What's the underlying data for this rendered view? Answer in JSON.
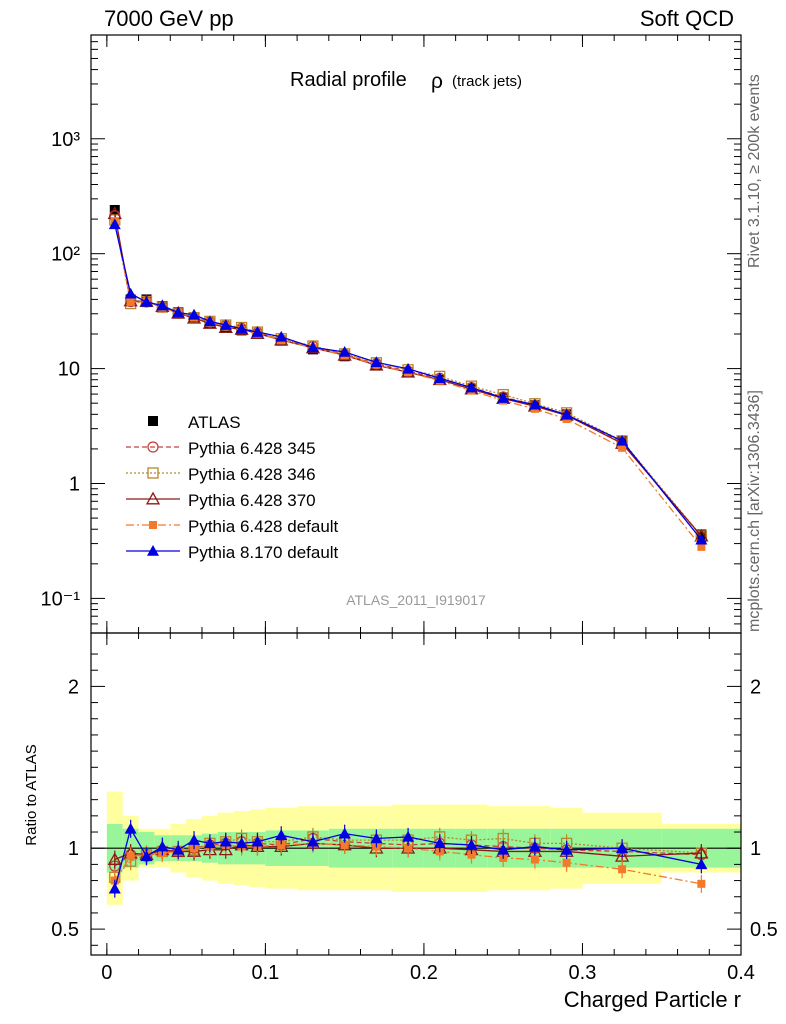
{
  "header": {
    "left": "7000 GeV pp",
    "right": "Soft QCD"
  },
  "side": {
    "rivet": "Rivet 3.1.10, ≥ 200k events",
    "mcplots": "mcplots.cern.ch [arXiv:1306.3436]"
  },
  "colors": {
    "atlas": "#000000",
    "p345": "#c04040",
    "p346": "#b8862e",
    "p370": "#8b1a1a",
    "p6def": "#f47a2b",
    "p8def": "#0000e0",
    "band_inner": "#99f599",
    "band_outer": "#ffff9f"
  },
  "chart_data": {
    "type": "line",
    "title": "Radial profile",
    "title_symbol": "ρ",
    "title_suffix": "(track jets)",
    "analysis_label": "ATLAS_2011_I919017",
    "xlabel": "Charged Particle r",
    "ylabel_ratio": "Ratio to ATLAS",
    "xlim": [
      -0.01,
      0.4
    ],
    "ylim": [
      0.05,
      8000
    ],
    "ylog": true,
    "ratio_ylim": [
      0.34,
      2.33
    ],
    "x_ticks": [
      "0",
      "0.1",
      "0.2",
      "0.3",
      "0.4"
    ],
    "x_tick_values": [
      0,
      0.1,
      0.2,
      0.3,
      0.4
    ],
    "y_ticks": [
      "10⁻¹",
      "1",
      "10",
      "10²",
      "10³"
    ],
    "y_tick_values": [
      0.1,
      1,
      10,
      100,
      1000
    ],
    "ratio_ticks": [
      "0.5",
      "1",
      "2"
    ],
    "ratio_tick_values": [
      0.5,
      1,
      2
    ],
    "bin_edges": [
      0,
      0.01,
      0.02,
      0.03,
      0.04,
      0.05,
      0.06,
      0.07,
      0.08,
      0.09,
      0.1,
      0.12,
      0.14,
      0.16,
      0.18,
      0.2,
      0.22,
      0.24,
      0.26,
      0.28,
      0.3,
      0.35,
      0.4
    ],
    "x": [
      0.005,
      0.015,
      0.025,
      0.035,
      0.045,
      0.055,
      0.065,
      0.075,
      0.085,
      0.095,
      0.11,
      0.13,
      0.15,
      0.17,
      0.19,
      0.21,
      0.23,
      0.25,
      0.27,
      0.29,
      0.325,
      0.375
    ],
    "atlas": [
      240,
      40,
      40,
      35,
      31,
      28,
      25,
      23,
      21.5,
      20,
      17.5,
      14.7,
      12.8,
      10.7,
      9.3,
      8.0,
      6.7,
      5.6,
      4.8,
      4.0,
      2.35,
      0.36
    ],
    "band_inner": [
      0.15,
      0.12,
      0.1,
      0.08,
      0.08,
      0.08,
      0.09,
      0.1,
      0.1,
      0.1,
      0.11,
      0.11,
      0.12,
      0.12,
      0.12,
      0.12,
      0.12,
      0.12,
      0.12,
      0.12,
      0.12,
      0.12
    ],
    "band_outer": [
      0.35,
      0.2,
      0.12,
      0.12,
      0.15,
      0.18,
      0.2,
      0.22,
      0.23,
      0.24,
      0.25,
      0.26,
      0.26,
      0.26,
      0.27,
      0.27,
      0.27,
      0.26,
      0.26,
      0.25,
      0.22,
      0.15
    ],
    "series": [
      {
        "name": "Pythia 6.428 345",
        "key": "p345",
        "marker": "circle-open",
        "dash": "5,3",
        "ratio": [
          0.89,
          0.96,
          0.95,
          0.98,
          0.98,
          1.0,
          1.02,
          1.03,
          1.04,
          1.03,
          1.02,
          1.06,
          1.04,
          1.03,
          1.02,
          1.03,
          1.02,
          1.01,
          1.0,
          0.99,
          0.98,
          0.96
        ]
      },
      {
        "name": "Pythia 6.428 346",
        "key": "p346",
        "marker": "square-open",
        "dash": "2,2",
        "ratio": [
          0.82,
          0.92,
          0.96,
          0.98,
          0.98,
          0.99,
          1.03,
          1.04,
          1.06,
          1.04,
          1.04,
          1.07,
          1.05,
          1.05,
          1.05,
          1.07,
          1.05,
          1.06,
          1.03,
          1.03,
          1.0,
          0.97
        ]
      },
      {
        "name": "Pythia 6.428 370",
        "key": "p370",
        "marker": "triangle-open",
        "dash": "",
        "ratio": [
          0.93,
          0.97,
          0.96,
          0.99,
          0.98,
          0.98,
          0.99,
          0.99,
          1.02,
          1.01,
          1.01,
          1.03,
          1.02,
          1.0,
          1.0,
          1.0,
          0.99,
          0.98,
          0.98,
          0.98,
          0.95,
          0.97
        ]
      },
      {
        "name": "Pythia 6.428 default",
        "key": "p6def",
        "marker": "square-filled",
        "dash": "8,3,2,3",
        "ratio": [
          0.8,
          0.95,
          0.96,
          0.97,
          0.98,
          1.0,
          1.01,
          1.02,
          1.01,
          1.01,
          1.02,
          1.03,
          1.02,
          1.01,
          1.0,
          0.98,
          0.96,
          0.94,
          0.93,
          0.91,
          0.87,
          0.78
        ]
      },
      {
        "name": "Pythia 8.170 default",
        "key": "p8def",
        "marker": "triangle-filled",
        "dash": "",
        "ratio": [
          0.75,
          1.12,
          0.95,
          1.01,
          0.99,
          1.05,
          1.03,
          1.04,
          1.03,
          1.04,
          1.08,
          1.04,
          1.09,
          1.06,
          1.07,
          1.03,
          1.02,
          0.99,
          1.01,
          0.99,
          1.0,
          0.9
        ]
      }
    ]
  }
}
